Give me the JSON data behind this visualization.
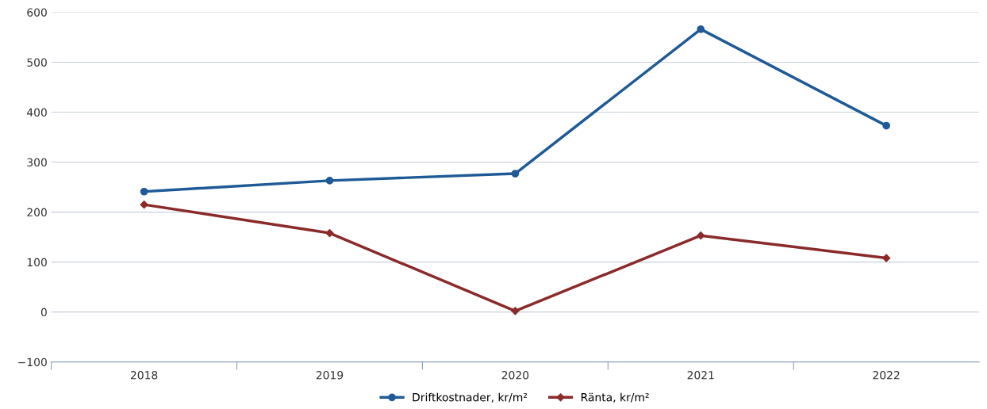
{
  "chart_data": {
    "type": "line",
    "categories": [
      "2018",
      "2019",
      "2020",
      "2021",
      "2022"
    ],
    "series": [
      {
        "name": "Driftkostnader, kr/m²",
        "color": "#1f5a96",
        "marker": "circle",
        "values": [
          241,
          263,
          277,
          566,
          373
        ]
      },
      {
        "name": "Ränta, kr/m²",
        "color": "#8b2a2a",
        "marker": "diamond",
        "values": [
          215,
          158,
          2,
          153,
          108
        ]
      }
    ],
    "ylim": [
      -100,
      600
    ],
    "yticks": [
      {
        "value": -100,
        "label": "−100"
      },
      0,
      100,
      200,
      300,
      400,
      500,
      600
    ],
    "grid": "y",
    "legend": "bottom",
    "line_style": "solid"
  }
}
